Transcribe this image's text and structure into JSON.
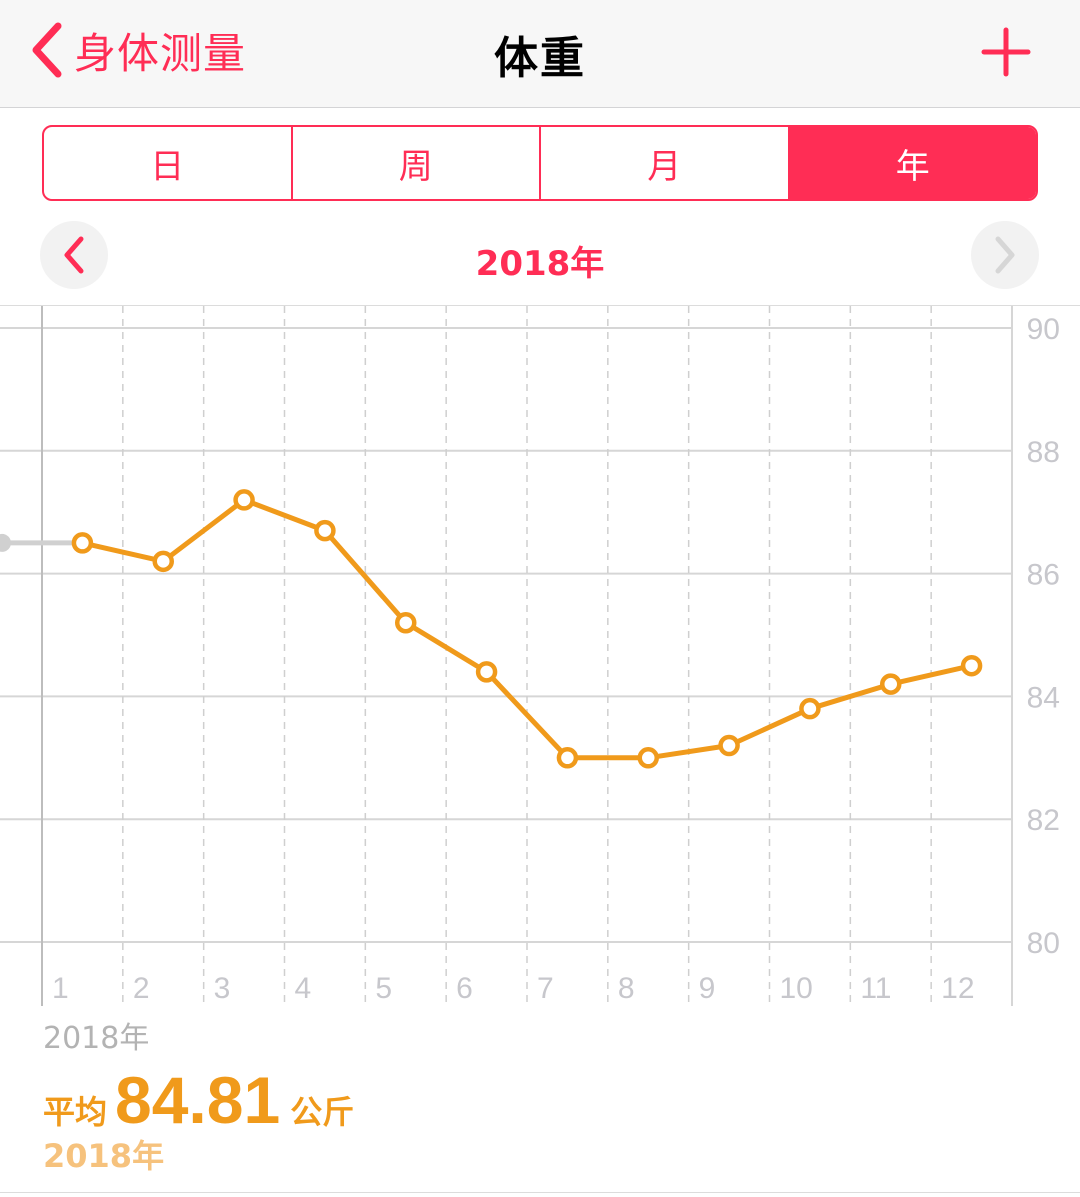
{
  "nav": {
    "back_label": "身体测量",
    "title": "体重",
    "add_icon": "plus-icon",
    "back_icon": "chevron-left-icon"
  },
  "segments": [
    {
      "label": "日",
      "active": false
    },
    {
      "label": "周",
      "active": false
    },
    {
      "label": "月",
      "active": false
    },
    {
      "label": "年",
      "active": true
    }
  ],
  "period": {
    "label": "2018年",
    "prev_icon": "chevron-left-icon",
    "next_icon": "chevron-right-icon"
  },
  "colors": {
    "accent": "#ff2d55",
    "line": "#f09a1b",
    "grid": "#dcdcdc",
    "muted": "#c7c7cc"
  },
  "chart_data": {
    "type": "line",
    "categories": [
      "1",
      "2",
      "3",
      "4",
      "5",
      "6",
      "7",
      "8",
      "9",
      "10",
      "11",
      "12"
    ],
    "series": [
      {
        "values": [
          86.5,
          86.2,
          87.2,
          86.7,
          85.2,
          84.4,
          83.0,
          83.0,
          83.2,
          83.8,
          84.2,
          84.5
        ]
      }
    ],
    "previous_point": 86.5,
    "y_ticks": [
      "90",
      "88",
      "86",
      "84",
      "82",
      "80"
    ],
    "ylim": [
      80,
      90
    ],
    "y_axis_side": "right",
    "grid": true
  },
  "summary": {
    "range_label": "2018年",
    "avg_label": "平均",
    "avg_value": "84.81",
    "unit": "公斤",
    "date_label": "2018年"
  }
}
